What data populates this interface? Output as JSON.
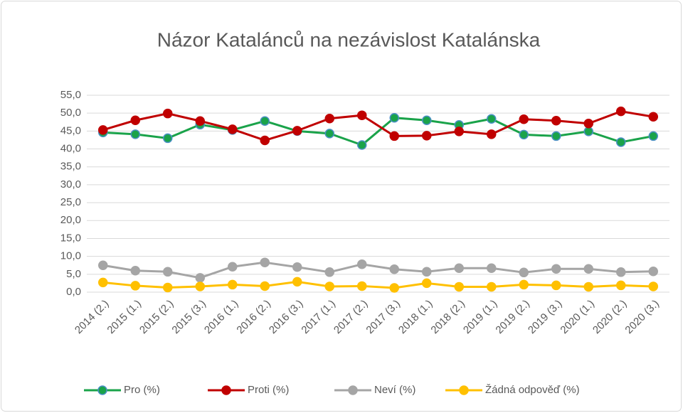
{
  "chart_data": {
    "type": "line",
    "title": "Názor Katalánců na nezávislost Katalánska",
    "categories": [
      "2014 (2.)",
      "2015 (1.)",
      "2015 (2.)",
      "2015 (3.)",
      "2016 (1.)",
      "2016 (2.)",
      "2016 (3.)",
      "2017 (1.)",
      "2017 (2.)",
      "2017 (3.)",
      "2018 (1.)",
      "2018 (2.)",
      "2019 (1.)",
      "2019 (2.)",
      "2019 (3.)",
      "2020 (1.)",
      "2020 (2.)",
      "2020 (3.)"
    ],
    "series": [
      {
        "name": "Pro (%)",
        "color": "#1aa34a",
        "values": [
          44.6,
          44.1,
          43.0,
          46.8,
          45.3,
          47.8,
          45.0,
          44.3,
          41.1,
          48.7,
          48.0,
          46.7,
          48.4,
          44.0,
          43.6,
          44.9,
          41.9,
          43.6
        ]
      },
      {
        "name": "Proti (%)",
        "color": "#c00000",
        "values": [
          45.3,
          48.0,
          49.9,
          47.8,
          45.5,
          42.4,
          45.1,
          48.5,
          49.4,
          43.6,
          43.7,
          44.9,
          44.1,
          48.3,
          47.9,
          47.1,
          50.5,
          49.0
        ]
      },
      {
        "name": "Neví (%)",
        "color": "#a5a5a5",
        "values": [
          7.5,
          6.0,
          5.7,
          4.0,
          7.1,
          8.3,
          7.0,
          5.6,
          7.8,
          6.4,
          5.7,
          6.7,
          6.7,
          5.5,
          6.5,
          6.5,
          5.6,
          5.8
        ]
      },
      {
        "name": "Žádná odpověď (%)",
        "color": "#ffc000",
        "values": [
          2.7,
          1.8,
          1.3,
          1.6,
          2.1,
          1.7,
          2.9,
          1.6,
          1.7,
          1.2,
          2.5,
          1.5,
          1.5,
          2.1,
          1.9,
          1.5,
          1.9,
          1.6
        ]
      }
    ],
    "ylim": [
      0,
      55
    ],
    "yticks": [
      {
        "value": 0,
        "label": "0,0"
      },
      {
        "value": 5,
        "label": "5,0"
      },
      {
        "value": 10,
        "label": "10,0"
      },
      {
        "value": 15,
        "label": "15,0"
      },
      {
        "value": 20,
        "label": "20,0"
      },
      {
        "value": 25,
        "label": "25,0"
      },
      {
        "value": 30,
        "label": "30,0"
      },
      {
        "value": 35,
        "label": "35,0"
      },
      {
        "value": 40,
        "label": "40,0"
      },
      {
        "value": 45,
        "label": "45,0"
      },
      {
        "value": 50,
        "label": "50,0"
      },
      {
        "value": 55,
        "label": "55,0"
      }
    ],
    "grid": true,
    "legend": "bottom"
  }
}
